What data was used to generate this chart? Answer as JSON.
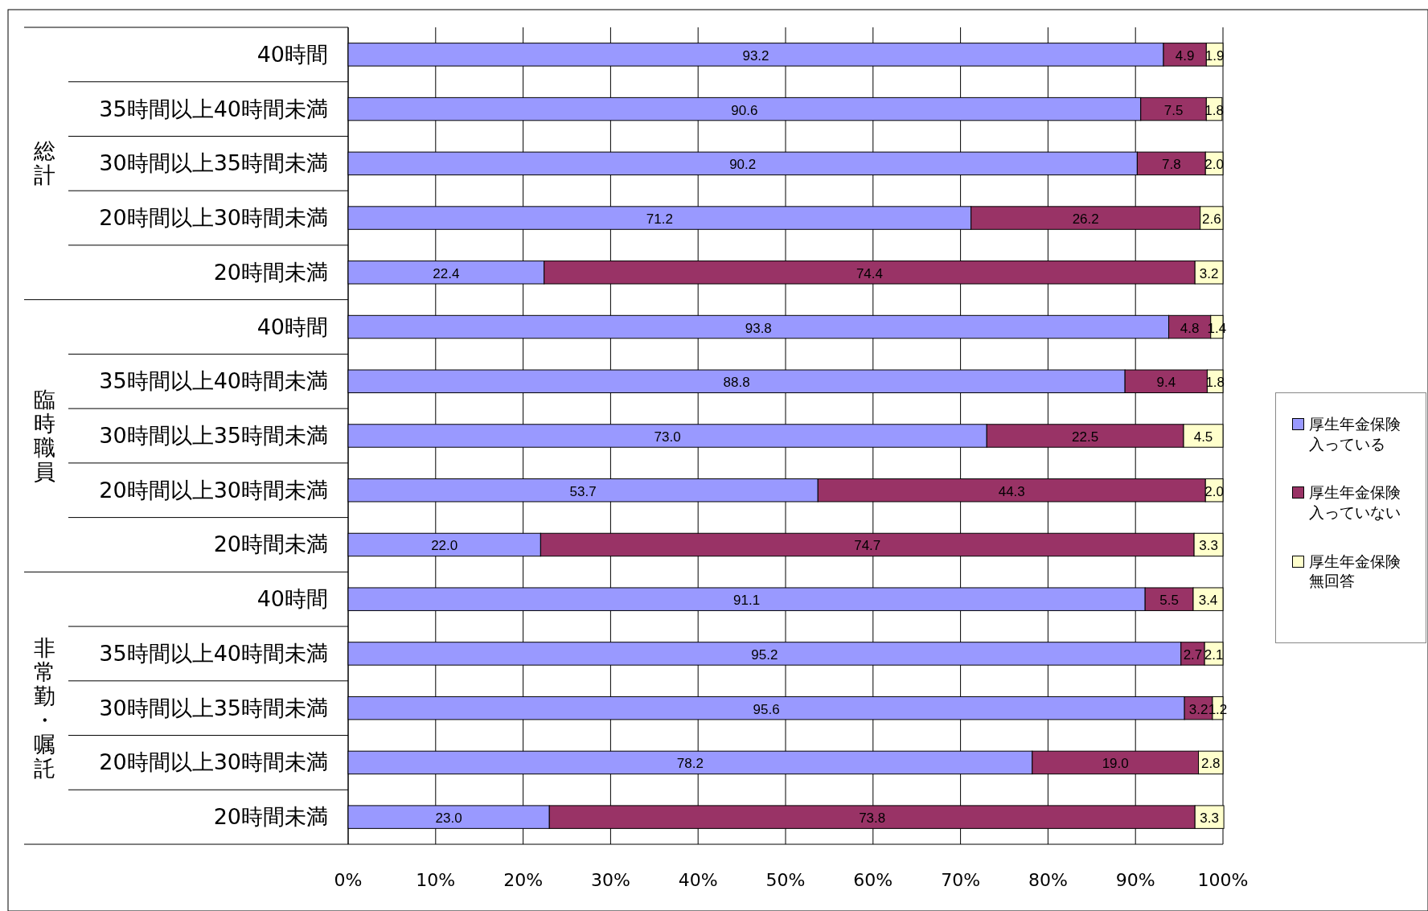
{
  "chart_data": {
    "type": "bar",
    "orientation": "horizontal",
    "stacked": true,
    "grid": "x",
    "legend": "right",
    "categories": [
      "40時間",
      "35時間以上40時間未満",
      "30時間以上35時間未満",
      "20時間以上30時間未満",
      "20時間未満",
      "40時間",
      "35時間以上40時間未満",
      "30時間以上35時間未満",
      "20時間以上30時間未満",
      "20時間未満",
      "40時間",
      "35時間以上40時間未満",
      "30時間以上35時間未満",
      "20時間以上30時間未満",
      "20時間未満"
    ],
    "annotations": [
      "総計",
      "臨時職員",
      "非常勤・嘱託"
    ],
    "xlim": [
      0,
      100
    ],
    "xticks": [
      {
        "value": 0,
        "label": "0%"
      },
      {
        "value": 10,
        "label": "10%"
      },
      {
        "value": 20,
        "label": "20%"
      },
      {
        "value": 30,
        "label": "30%"
      },
      {
        "value": 40,
        "label": "40%"
      },
      {
        "value": 50,
        "label": "50%"
      },
      {
        "value": 60,
        "label": "60%"
      },
      {
        "value": 70,
        "label": "70%"
      },
      {
        "value": 80,
        "label": "80%"
      },
      {
        "value": 90,
        "label": "90%"
      },
      {
        "value": 100,
        "label": "100%"
      }
    ],
    "series": [
      {
        "name": "厚生年金保険入っている",
        "color": "#9999ff",
        "values": [
          93.2,
          90.6,
          90.2,
          71.2,
          22.4,
          93.8,
          88.8,
          73.0,
          53.7,
          22.0,
          91.1,
          95.2,
          95.6,
          78.2,
          23.0
        ],
        "value_labels": [
          "93.2",
          "90.6",
          "90.2",
          "71.2",
          "22.4",
          "93.8",
          "88.8",
          "73.0",
          "53.7",
          "22.0",
          "91.1",
          "95.2",
          "95.6",
          "78.2",
          "23.0"
        ]
      },
      {
        "name": "厚生年金保険入っていない",
        "color": "#993366",
        "values": [
          4.9,
          7.5,
          7.8,
          26.2,
          74.4,
          4.8,
          9.4,
          22.5,
          44.3,
          74.7,
          5.5,
          2.7,
          3.2,
          19.0,
          73.8
        ],
        "value_labels": [
          "4.9",
          "7.5",
          "7.8",
          "26.2",
          "74.4",
          "4.8",
          "9.4",
          "22.5",
          "44.3",
          "74.7",
          "5.5",
          "2.7",
          "3.2",
          "19.0",
          "73.8"
        ]
      },
      {
        "name": "厚生年金保険無回答",
        "color": "#ffffcc",
        "values": [
          1.9,
          1.8,
          2.0,
          2.6,
          3.2,
          1.4,
          1.8,
          4.5,
          2.0,
          3.3,
          3.4,
          2.1,
          1.2,
          2.8,
          3.3
        ],
        "value_labels": [
          "1.9",
          "1.8",
          "2.0",
          "2.6",
          "3.2",
          "1.4",
          "1.8",
          "4.5",
          "2.0",
          "3.3",
          "3.4",
          "2.1",
          "1.2",
          "2.8",
          "3.3"
        ]
      }
    ]
  }
}
